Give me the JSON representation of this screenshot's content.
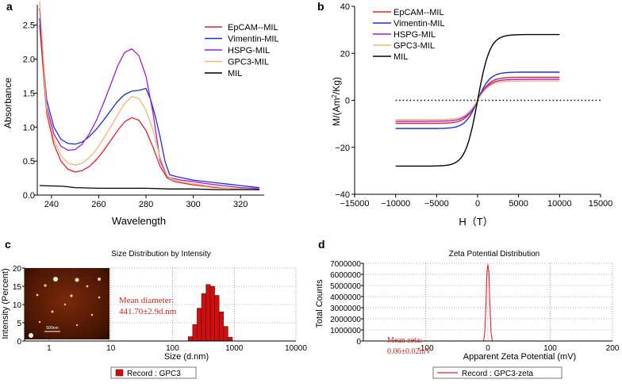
{
  "panels": {
    "a": {
      "letter": "a"
    },
    "b": {
      "letter": "b"
    },
    "c": {
      "letter": "c",
      "inset_scale": "500nm"
    },
    "d": {
      "letter": "d"
    }
  },
  "chart_data": [
    {
      "id": "a",
      "type": "line",
      "xlabel": "Wavelength",
      "ylabel": "Absorbance",
      "xlim": [
        234,
        330
      ],
      "ylim": [
        0,
        2.8
      ],
      "xticks": [
        240,
        260,
        280,
        300,
        320
      ],
      "yticks": [
        0.0,
        0.5,
        1.0,
        1.5,
        2.0,
        2.5
      ],
      "ytick_labels": [
        "0.0",
        "0.5",
        "1.0",
        "1.5",
        "2.0",
        "2.5"
      ],
      "legend": "top-right",
      "series": [
        {
          "name": "EpCAM--MIL",
          "color": "#e8202a",
          "x": [
            235,
            238,
            241,
            244,
            247,
            250,
            253,
            256,
            259,
            262,
            265,
            268,
            271,
            274,
            277,
            280,
            283,
            286,
            289,
            292,
            295,
            300,
            305,
            310,
            315,
            320,
            325,
            328
          ],
          "y": [
            2.5,
            1.2,
            0.75,
            0.5,
            0.38,
            0.34,
            0.36,
            0.42,
            0.52,
            0.65,
            0.8,
            0.95,
            1.08,
            1.14,
            1.1,
            0.95,
            0.7,
            0.42,
            0.25,
            0.2,
            0.18,
            0.15,
            0.13,
            0.11,
            0.1,
            0.09,
            0.08,
            0.08
          ]
        },
        {
          "name": "Vimentin-MIL",
          "color": "#1c2fd6",
          "x": [
            235,
            238,
            241,
            244,
            247,
            250,
            253,
            256,
            259,
            262,
            265,
            268,
            271,
            274,
            277,
            280,
            282,
            284,
            286,
            288,
            290,
            293,
            296,
            300,
            305,
            310,
            315,
            320,
            325,
            328
          ],
          "y": [
            2.6,
            1.4,
            1.0,
            0.82,
            0.76,
            0.75,
            0.78,
            0.86,
            0.97,
            1.1,
            1.24,
            1.38,
            1.48,
            1.53,
            1.54,
            1.57,
            1.4,
            1.15,
            0.85,
            0.5,
            0.3,
            0.27,
            0.25,
            0.22,
            0.2,
            0.18,
            0.16,
            0.14,
            0.12,
            0.11
          ]
        },
        {
          "name": "HSPG-MIL",
          "color": "#a01cd8",
          "x": [
            235,
            238,
            241,
            244,
            247,
            250,
            253,
            256,
            259,
            262,
            265,
            268,
            271,
            274,
            277,
            280,
            283,
            286,
            289,
            292,
            295,
            300,
            305,
            310,
            315,
            320,
            325,
            328
          ],
          "y": [
            2.75,
            1.3,
            0.9,
            0.72,
            0.66,
            0.67,
            0.75,
            0.9,
            1.1,
            1.35,
            1.62,
            1.9,
            2.1,
            2.15,
            2.05,
            1.75,
            1.2,
            0.5,
            0.27,
            0.24,
            0.22,
            0.2,
            0.17,
            0.15,
            0.13,
            0.11,
            0.1,
            0.09
          ]
        },
        {
          "name": "GPC3-MIL",
          "color": "#f5b370",
          "x": [
            235,
            238,
            241,
            244,
            247,
            250,
            253,
            256,
            259,
            262,
            265,
            268,
            271,
            274,
            277,
            280,
            283,
            286,
            289,
            292,
            295,
            300,
            305,
            310,
            315,
            320,
            325,
            328
          ],
          "y": [
            2.85,
            1.25,
            0.82,
            0.58,
            0.47,
            0.44,
            0.47,
            0.55,
            0.67,
            0.83,
            1.0,
            1.18,
            1.35,
            1.45,
            1.42,
            1.25,
            0.95,
            0.55,
            0.28,
            0.22,
            0.2,
            0.17,
            0.14,
            0.12,
            0.1,
            0.09,
            0.08,
            0.08
          ]
        },
        {
          "name": "MIL",
          "color": "#000000",
          "x": [
            235,
            245,
            250,
            260,
            270,
            280,
            290,
            300,
            310,
            320,
            328
          ],
          "y": [
            0.14,
            0.13,
            0.11,
            0.1,
            0.1,
            0.1,
            0.09,
            0.09,
            0.08,
            0.08,
            0.08
          ]
        }
      ]
    },
    {
      "id": "b",
      "type": "line",
      "xlabel": "H（T）",
      "ylabel": "M/(Am²/Kg)",
      "ylabel_main": "M/(Am",
      "ylabel_sup": "2",
      "ylabel_tail": "/Kg)",
      "xlim": [
        -15000,
        15000
      ],
      "ylim": [
        -40,
        40
      ],
      "xticks": [
        -15000,
        -10000,
        -5000,
        0,
        5000,
        10000,
        15000
      ],
      "yticks": [
        -40,
        -20,
        0,
        20,
        40
      ],
      "zero_line": "dotted",
      "legend": "top-left",
      "series": [
        {
          "name": "EpCAM--MIL",
          "color": "#e8202a",
          "ms": 9.8,
          "k": 1500
        },
        {
          "name": "Vimentin-MIL",
          "color": "#1c2fd6",
          "ms": 12.0,
          "k": 1500
        },
        {
          "name": "HSPG-MIL",
          "color": "#a01cd8",
          "ms": 8.9,
          "k": 1500
        },
        {
          "name": "GPC3-MIL",
          "color": "#f5b370",
          "ms": 8.2,
          "k": 1500
        },
        {
          "name": "MIL",
          "color": "#000000",
          "ms": 28.0,
          "k": 1500
        }
      ]
    },
    {
      "id": "c",
      "type": "bar",
      "title": "Size Distribution by Intensity",
      "xlabel": "Size (d.nm)",
      "ylabel": "Intensity (Percent)",
      "xscale": "log",
      "xlim": [
        0.4,
        10000
      ],
      "ylim": [
        0,
        20
      ],
      "xticks": [
        1,
        10,
        100,
        1000,
        10000
      ],
      "xtick_labels": [
        "1",
        "10",
        "100",
        "1000",
        "10000"
      ],
      "yticks": [
        0,
        5,
        10,
        15,
        20
      ],
      "annotation": "Mean diameter:\n441.70±2.9d.nm",
      "annotation_line1": "Mean diameter:",
      "annotation_line2": "441.70±2.9d.nm",
      "legend_label": "Record : GPC3",
      "color": "#cc1010",
      "bins": [
        180,
        212,
        250,
        295,
        348,
        410,
        484,
        571,
        674,
        795
      ],
      "values": [
        1.2,
        4.5,
        9.0,
        13.0,
        15.5,
        15.0,
        12.5,
        8.0,
        4.0,
        1.0
      ]
    },
    {
      "id": "d",
      "type": "line",
      "title": "Zeta Potential Distribution",
      "xlabel": "Apparent Zeta Potential (mV)",
      "ylabel": "Total Counts",
      "xlim": [
        -200,
        200
      ],
      "ylim": [
        0,
        7000000
      ],
      "xticks": [
        -100,
        0,
        100,
        200
      ],
      "yticks": [
        0,
        1000000,
        2000000,
        3000000,
        4000000,
        5000000,
        6000000,
        7000000
      ],
      "ytick_labels": [
        "0",
        "1000000",
        "2000000",
        "3000000",
        "4000000",
        "5000000",
        "6000000",
        "7000000"
      ],
      "annotation": "Mean zeta:\n0.06±0.02mV",
      "annotation_line1": "Mean zeta:",
      "annotation_line2": "0.06±0.02mV",
      "legend_label": "Record : GPC3-zeta",
      "color": "#e8202a",
      "x": [
        -7,
        -5,
        -3,
        -1.5,
        0,
        1.5,
        3,
        5,
        7
      ],
      "y": [
        0,
        800000,
        3500000,
        6200000,
        6900000,
        6200000,
        3500000,
        800000,
        0
      ]
    }
  ]
}
